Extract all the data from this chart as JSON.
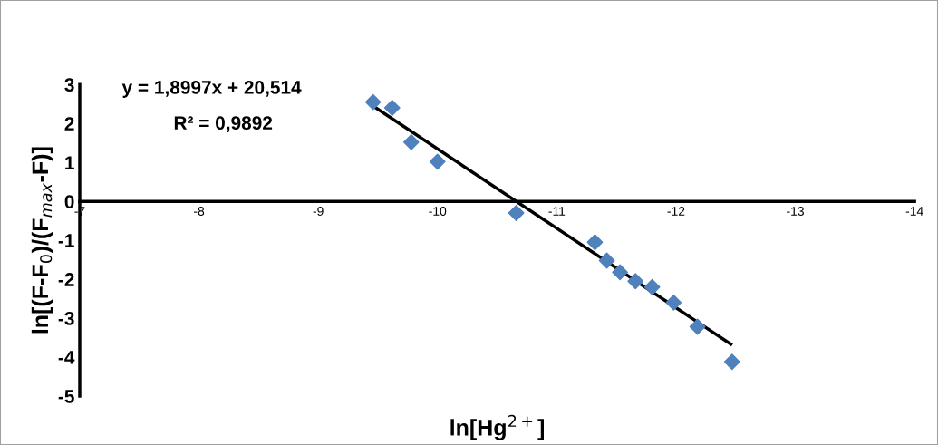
{
  "chart_data": {
    "type": "scatter",
    "xlabel": "ln[Hg$^{2+}$]",
    "ylabel": "ln[(F-F$_{0}$)/(F$_{max}$-F)]",
    "xlim": [
      -7,
      -14
    ],
    "ylim": [
      -5,
      3
    ],
    "xticks": [
      -7,
      -8,
      -9,
      -10,
      -11,
      -12,
      -13,
      -14
    ],
    "yticks": [
      -5,
      -4,
      -3,
      -2,
      -1,
      0,
      1,
      2,
      3
    ],
    "grid": false,
    "legend": false,
    "series": [
      {
        "color": "#4f81bd",
        "marker": "diamond",
        "x": [
          -9.46,
          -9.62,
          -9.78,
          -10.0,
          -10.66,
          -11.32,
          -11.42,
          -11.53,
          -11.66,
          -11.8,
          -11.98,
          -12.18,
          -12.47
        ],
        "values": [
          2.55,
          2.4,
          1.52,
          1.02,
          -0.3,
          -1.05,
          -1.52,
          -1.82,
          -2.05,
          -2.2,
          -2.6,
          -3.22,
          -4.12
        ]
      },
      {
        "type": "line",
        "marker": "none",
        "color": "#000000",
        "x": [
          -9.46,
          -12.46
        ],
        "values": [
          2.45,
          -3.67
        ]
      }
    ],
    "annotations": [
      "y = 1,8997x + 20,514",
      "R² = 0,9892"
    ]
  }
}
